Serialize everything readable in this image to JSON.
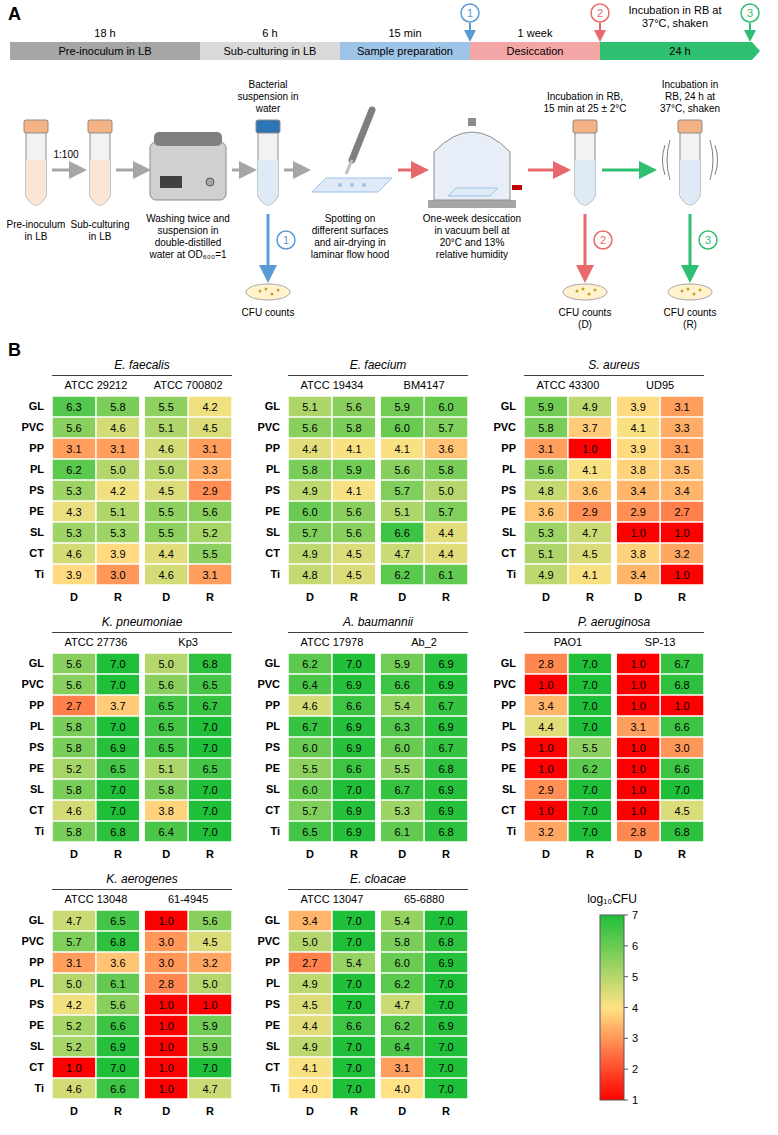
{
  "panel_a": {
    "letter": "A",
    "timeline": [
      {
        "label": "Pre-inoculum in LB",
        "duration": "18 h"
      },
      {
        "label": "Sub-culturing in LB",
        "duration": "6 h"
      },
      {
        "label": "Sample preparation",
        "duration": "15 min"
      },
      {
        "label": "Desiccation",
        "duration": "1 week"
      },
      {
        "label": "Incubation in RB at 37°C, shaken",
        "duration": "24 h"
      }
    ],
    "time_points": [
      "1",
      "2",
      "3"
    ],
    "dilution": "1:100",
    "steps": {
      "pre_inoculum": "Pre-inoculum in LB",
      "sub_culturing": "Sub-culturing in LB",
      "washing": "Washing twice and suspension in double-distilled water at OD₆₀₀=1",
      "suspension": "Bacterial suspension in water",
      "spotting": "Spotting on different surfaces and air-drying in laminar flow hood",
      "desiccation": "One-week desiccation in vacuum bell at 20°C and 13% relative humidity",
      "incubation_short": "Incubation in RB, 15 min at 25 ± 2°C",
      "incubation_long": "Incubation in RB, 24 h at 37°C, shaken"
    },
    "counts": [
      "CFU counts",
      "CFU counts (D)",
      "CFU counts (R)"
    ]
  },
  "chart_data": {
    "type": "heatmap",
    "letter": "B",
    "rows": [
      "GL",
      "PVC",
      "PP",
      "PL",
      "PS",
      "PE",
      "SL",
      "CT",
      "Ti"
    ],
    "columns": [
      "D",
      "R"
    ],
    "data_labels": true,
    "panels": [
      {
        "title": "E. faecalis",
        "strains": [
          {
            "name": "ATCC 29212",
            "values": [
              [
                6.3,
                5.8
              ],
              [
                5.6,
                4.6
              ],
              [
                3.1,
                3.1
              ],
              [
                6.2,
                5.0
              ],
              [
                5.3,
                4.2
              ],
              [
                4.3,
                5.1
              ],
              [
                5.3,
                5.3
              ],
              [
                4.6,
                3.9
              ],
              [
                3.9,
                3.0
              ]
            ]
          },
          {
            "name": "ATCC 700802",
            "values": [
              [
                5.5,
                4.2
              ],
              [
                5.1,
                4.5
              ],
              [
                4.6,
                3.1
              ],
              [
                5.0,
                3.3
              ],
              [
                4.5,
                2.9
              ],
              [
                5.5,
                5.6
              ],
              [
                5.5,
                5.2
              ],
              [
                4.4,
                5.5
              ],
              [
                4.6,
                3.1
              ]
            ]
          }
        ]
      },
      {
        "title": "E. faecium",
        "strains": [
          {
            "name": "ATCC 19434",
            "values": [
              [
                5.1,
                5.6
              ],
              [
                5.6,
                5.8
              ],
              [
                4.4,
                4.1
              ],
              [
                5.8,
                5.9
              ],
              [
                4.9,
                4.1
              ],
              [
                6.0,
                5.6
              ],
              [
                5.7,
                5.6
              ],
              [
                4.9,
                4.5
              ],
              [
                4.8,
                4.5
              ]
            ]
          },
          {
            "name": "BM4147",
            "values": [
              [
                5.9,
                6.0
              ],
              [
                6.0,
                5.7
              ],
              [
                4.1,
                3.6
              ],
              [
                5.6,
                5.8
              ],
              [
                5.7,
                5.0
              ],
              [
                5.1,
                5.7
              ],
              [
                6.6,
                4.4
              ],
              [
                4.7,
                4.4
              ],
              [
                6.2,
                6.1
              ]
            ]
          }
        ]
      },
      {
        "title": "S. aureus",
        "strains": [
          {
            "name": "ATCC 43300",
            "values": [
              [
                5.9,
                4.9
              ],
              [
                5.8,
                3.7
              ],
              [
                3.1,
                1.0
              ],
              [
                5.6,
                4.1
              ],
              [
                4.8,
                3.6
              ],
              [
                3.6,
                2.9
              ],
              [
                5.3,
                4.7
              ],
              [
                5.1,
                4.5
              ],
              [
                4.9,
                4.1
              ]
            ]
          },
          {
            "name": "UD95",
            "values": [
              [
                3.9,
                3.1
              ],
              [
                4.1,
                3.3
              ],
              [
                3.9,
                3.1
              ],
              [
                3.8,
                3.5
              ],
              [
                3.4,
                3.4
              ],
              [
                2.9,
                2.7
              ],
              [
                1.0,
                1.0
              ],
              [
                3.8,
                3.2
              ],
              [
                3.4,
                1.0
              ]
            ]
          }
        ]
      },
      {
        "title": "K. pneumoniae",
        "strains": [
          {
            "name": "ATCC 27736",
            "values": [
              [
                5.6,
                7.0
              ],
              [
                5.6,
                7.0
              ],
              [
                2.7,
                3.7
              ],
              [
                5.8,
                7.0
              ],
              [
                5.8,
                6.9
              ],
              [
                5.2,
                6.5
              ],
              [
                5.8,
                7.0
              ],
              [
                4.6,
                7.0
              ],
              [
                5.8,
                6.8
              ]
            ]
          },
          {
            "name": "Kp3",
            "values": [
              [
                5.0,
                6.8
              ],
              [
                5.6,
                6.5
              ],
              [
                6.5,
                6.7
              ],
              [
                6.5,
                7.0
              ],
              [
                6.5,
                7.0
              ],
              [
                5.1,
                6.5
              ],
              [
                5.8,
                7.0
              ],
              [
                3.8,
                7.0
              ],
              [
                6.4,
                7.0
              ]
            ]
          }
        ]
      },
      {
        "title": "A. baumannii",
        "strains": [
          {
            "name": "ATCC 17978",
            "values": [
              [
                6.2,
                7.0
              ],
              [
                6.4,
                6.9
              ],
              [
                4.6,
                6.6
              ],
              [
                6.7,
                6.9
              ],
              [
                6.0,
                6.9
              ],
              [
                5.5,
                6.6
              ],
              [
                6.0,
                7.0
              ],
              [
                5.7,
                6.9
              ],
              [
                6.5,
                6.9
              ]
            ]
          },
          {
            "name": "Ab_2",
            "values": [
              [
                5.9,
                6.9
              ],
              [
                6.6,
                6.9
              ],
              [
                5.4,
                6.7
              ],
              [
                6.3,
                6.9
              ],
              [
                6.0,
                6.7
              ],
              [
                5.5,
                6.8
              ],
              [
                6.7,
                6.9
              ],
              [
                5.3,
                6.9
              ],
              [
                6.1,
                6.8
              ]
            ]
          }
        ]
      },
      {
        "title": "P. aeruginosa",
        "strains": [
          {
            "name": "PAO1",
            "values": [
              [
                2.8,
                7.0
              ],
              [
                1.0,
                7.0
              ],
              [
                3.4,
                7.0
              ],
              [
                4.4,
                7.0
              ],
              [
                1.0,
                5.5
              ],
              [
                1.0,
                6.2
              ],
              [
                2.9,
                7.0
              ],
              [
                1.0,
                7.0
              ],
              [
                3.2,
                7.0
              ]
            ]
          },
          {
            "name": "SP-13",
            "values": [
              [
                1.0,
                6.7
              ],
              [
                1.0,
                6.8
              ],
              [
                1.0,
                1.0
              ],
              [
                3.1,
                6.6
              ],
              [
                1.0,
                3.0
              ],
              [
                1.0,
                6.6
              ],
              [
                1.0,
                7.0
              ],
              [
                1.0,
                4.5
              ],
              [
                2.8,
                6.8
              ]
            ]
          }
        ]
      },
      {
        "title": "K. aerogenes",
        "strains": [
          {
            "name": "ATCC 13048",
            "values": [
              [
                4.7,
                6.5
              ],
              [
                5.7,
                6.8
              ],
              [
                3.1,
                3.6
              ],
              [
                5.0,
                6.1
              ],
              [
                4.2,
                5.6
              ],
              [
                5.2,
                6.6
              ],
              [
                5.2,
                6.9
              ],
              [
                1.0,
                7.0
              ],
              [
                4.6,
                6.6
              ]
            ]
          },
          {
            "name": "61-4945",
            "values": [
              [
                1.0,
                5.6
              ],
              [
                3.0,
                4.5
              ],
              [
                3.0,
                3.2
              ],
              [
                2.8,
                5.0
              ],
              [
                1.0,
                1.0
              ],
              [
                1.0,
                5.9
              ],
              [
                1.0,
                5.9
              ],
              [
                1.0,
                7.0
              ],
              [
                1.0,
                4.7
              ]
            ]
          }
        ]
      },
      {
        "title": "E. cloacae",
        "strains": [
          {
            "name": "ATCC 13047",
            "values": [
              [
                3.4,
                7.0
              ],
              [
                5.0,
                7.0
              ],
              [
                2.7,
                5.4
              ],
              [
                4.9,
                7.0
              ],
              [
                4.5,
                7.0
              ],
              [
                4.4,
                6.6
              ],
              [
                4.9,
                7.0
              ],
              [
                4.1,
                7.0
              ],
              [
                4.0,
                7.0
              ]
            ]
          },
          {
            "name": "65-6880",
            "values": [
              [
                5.4,
                7.0
              ],
              [
                5.8,
                6.8
              ],
              [
                6.0,
                6.9
              ],
              [
                6.2,
                7.0
              ],
              [
                4.7,
                7.0
              ],
              [
                6.2,
                6.9
              ],
              [
                6.4,
                7.0
              ],
              [
                3.1,
                7.0
              ],
              [
                4.0,
                7.0
              ]
            ]
          }
        ]
      }
    ],
    "colorbar": {
      "label": "log₁₀CFU",
      "range": [
        1,
        7
      ],
      "ticks": [
        1,
        2,
        3,
        4,
        5,
        6,
        7
      ],
      "colors": [
        "#ff0000",
        "#ffe285",
        "#1fbf3a"
      ]
    }
  }
}
